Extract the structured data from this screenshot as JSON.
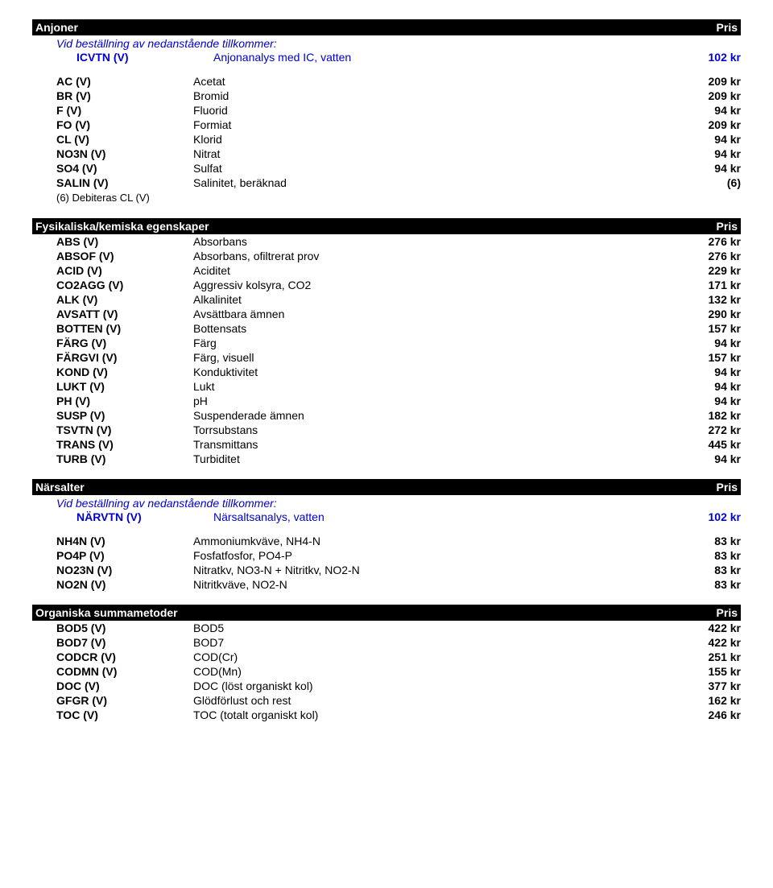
{
  "sections": [
    {
      "title": "Anjoner",
      "pris": "Pris",
      "subHeader": "Vid beställning av nedanstående tillkommer:",
      "subRow": {
        "code": "ICVTN (V)",
        "name": "Anjonanalys med IC, vatten",
        "price": "102 kr"
      },
      "rows": [
        {
          "code": "AC (V)",
          "name": "Acetat",
          "price": "209 kr"
        },
        {
          "code": "BR (V)",
          "name": "Bromid",
          "price": "209 kr"
        },
        {
          "code": "F (V)",
          "name": "Fluorid",
          "price": "94 kr"
        },
        {
          "code": "FO (V)",
          "name": "Formiat",
          "price": "209 kr"
        },
        {
          "code": "CL (V)",
          "name": "Klorid",
          "price": "94 kr"
        },
        {
          "code": "NO3N (V)",
          "name": "Nitrat",
          "price": "94 kr"
        },
        {
          "code": "SO4 (V)",
          "name": "Sulfat",
          "price": "94 kr"
        },
        {
          "code": "SALIN (V)",
          "name": "Salinitet, beräknad",
          "price": "(6)"
        }
      ],
      "footnote": "(6) Debiteras CL (V)"
    },
    {
      "title": "Fysikaliska/kemiska egenskaper",
      "pris": "Pris",
      "rows": [
        {
          "code": "ABS (V)",
          "name": "Absorbans",
          "price": "276 kr"
        },
        {
          "code": "ABSOF (V)",
          "name": "Absorbans, ofiltrerat prov",
          "price": "276 kr"
        },
        {
          "code": "ACID (V)",
          "name": "Aciditet",
          "price": "229 kr"
        },
        {
          "code": "CO2AGG (V)",
          "name": "Aggressiv kolsyra, CO2",
          "price": "171 kr"
        },
        {
          "code": "ALK (V)",
          "name": "Alkalinitet",
          "price": "132 kr"
        },
        {
          "code": "AVSATT (V)",
          "name": "Avsättbara ämnen",
          "price": "290 kr"
        },
        {
          "code": "BOTTEN (V)",
          "name": "Bottensats",
          "price": "157 kr"
        },
        {
          "code": "FÄRG (V)",
          "name": "Färg",
          "price": "94 kr"
        },
        {
          "code": "FÄRGVI (V)",
          "name": "Färg, visuell",
          "price": "157 kr"
        },
        {
          "code": "KOND (V)",
          "name": "Konduktivitet",
          "price": "94 kr"
        },
        {
          "code": "LUKT (V)",
          "name": "Lukt",
          "price": "94 kr"
        },
        {
          "code": "PH (V)",
          "name": "pH",
          "price": "94 kr"
        },
        {
          "code": "SUSP (V)",
          "name": "Suspenderade ämnen",
          "price": "182 kr"
        },
        {
          "code": "TSVTN (V)",
          "name": "Torrsubstans",
          "price": "272 kr"
        },
        {
          "code": "TRANS (V)",
          "name": "Transmittans",
          "price": "445 kr"
        },
        {
          "code": "TURB (V)",
          "name": "Turbiditet",
          "price": "94 kr"
        }
      ]
    },
    {
      "title": "Närsalter",
      "pris": "Pris",
      "subHeader": "Vid beställning av nedanstående tillkommer:",
      "subRow": {
        "code": "NÄRVTN (V)",
        "name": "Närsaltsanalys, vatten",
        "price": "102 kr"
      },
      "rows": [
        {
          "code": "NH4N (V)",
          "name": "Ammoniumkväve, NH4-N",
          "price": "83 kr"
        },
        {
          "code": "PO4P (V)",
          "name": "Fosfatfosfor, PO4-P",
          "price": "83 kr"
        },
        {
          "code": "NO23N (V)",
          "name": "Nitratkv, NO3-N + Nitritkv, NO2-N",
          "price": "83 kr"
        },
        {
          "code": "NO2N (V)",
          "name": "Nitritkväve, NO2-N",
          "price": "83 kr"
        }
      ]
    },
    {
      "title": "Organiska summametoder",
      "pris": "Pris",
      "rows": [
        {
          "code": "BOD5 (V)",
          "name": "BOD5",
          "price": "422 kr"
        },
        {
          "code": "BOD7 (V)",
          "name": "BOD7",
          "price": "422 kr"
        },
        {
          "code": "CODCR (V)",
          "name": "COD(Cr)",
          "price": "251 kr"
        },
        {
          "code": "CODMN (V)",
          "name": "COD(Mn)",
          "price": "155 kr"
        },
        {
          "code": "DOC (V)",
          "name": "DOC (löst organiskt kol)",
          "price": "377 kr"
        },
        {
          "code": "GFGR (V)",
          "name": "Glödförlust och rest",
          "price": "162 kr"
        },
        {
          "code": "TOC (V)",
          "name": "TOC (totalt organiskt kol)",
          "price": "246 kr"
        }
      ]
    }
  ]
}
